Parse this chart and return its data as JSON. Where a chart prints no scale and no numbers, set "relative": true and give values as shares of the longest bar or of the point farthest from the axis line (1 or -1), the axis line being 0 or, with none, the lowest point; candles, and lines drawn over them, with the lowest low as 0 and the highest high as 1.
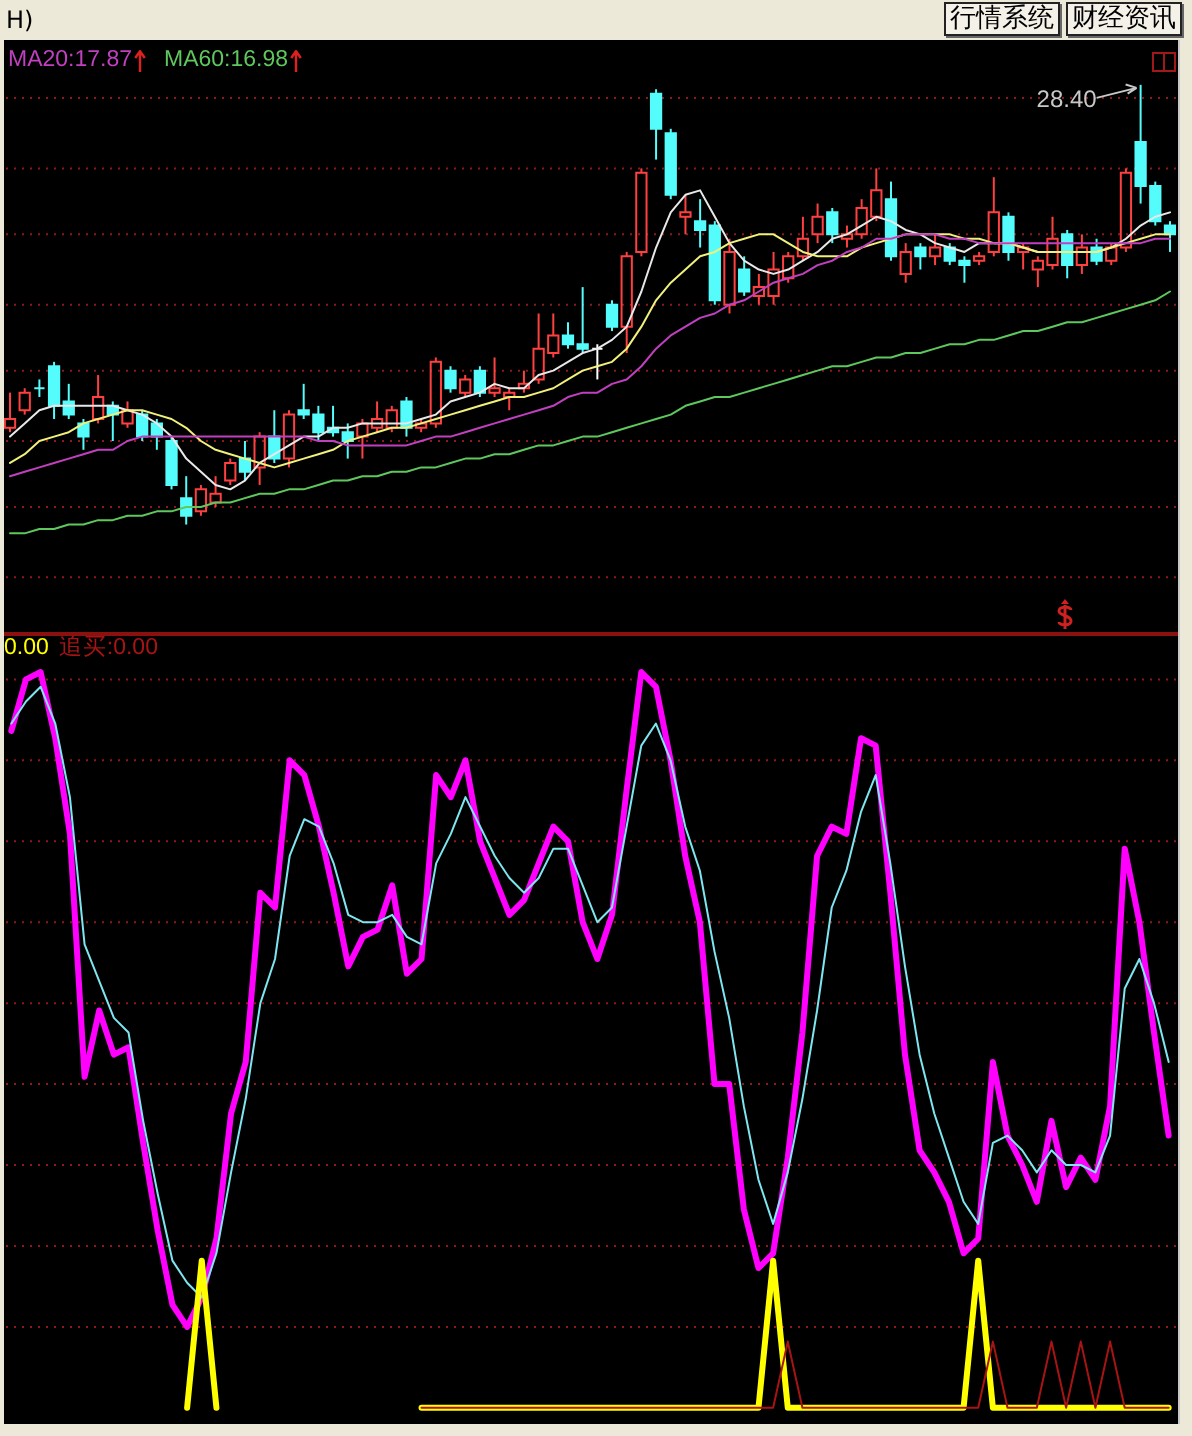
{
  "chart_data": [
    {
      "type": "candlestick",
      "relative": true,
      "legend": "top left",
      "ref_lines": [
        {
          "axis": "y",
          "value": 0.97,
          "color": "#8b1a1a",
          "line_style": "dotted"
        },
        {
          "axis": "y",
          "value": 0.81,
          "color": "#8b1a1a",
          "line_style": "dotted"
        },
        {
          "axis": "y",
          "value": 0.66,
          "color": "#8b1a1a",
          "line_style": "dotted"
        },
        {
          "axis": "y",
          "value": 0.5,
          "color": "#8b1a1a",
          "line_style": "dotted"
        },
        {
          "axis": "y",
          "value": 0.35,
          "color": "#8b1a1a",
          "line_style": "dotted"
        },
        {
          "axis": "y",
          "value": 0.19,
          "color": "#8b1a1a",
          "line_style": "dotted"
        },
        {
          "axis": "y",
          "value": 0.04,
          "color": "#8b1a1a",
          "line_style": "dotted"
        },
        {
          "axis": "y",
          "value": -0.12,
          "color": "#8b1a1a",
          "line_style": "dotted"
        }
      ],
      "categories": [
        null,
        null,
        null,
        null,
        null,
        null,
        null,
        null,
        null,
        null,
        null,
        null,
        null,
        null,
        null,
        null,
        null,
        null,
        null,
        null,
        null,
        null,
        null,
        null,
        null,
        null,
        null,
        null,
        null,
        null,
        null,
        null,
        null,
        null,
        null,
        null,
        null,
        null,
        null,
        null,
        null,
        null,
        null,
        null,
        null,
        null,
        null,
        null,
        null,
        null,
        null,
        null,
        null,
        null,
        null,
        null,
        null,
        null,
        null,
        null,
        null,
        null,
        null,
        null,
        null,
        null,
        null,
        null,
        null,
        null,
        null,
        null,
        null,
        null,
        null,
        null,
        null,
        null,
        null,
        null
      ],
      "ohlc": [
        [
          0.22,
          0.3,
          0.21,
          0.24
        ],
        [
          0.26,
          0.31,
          0.25,
          0.3
        ],
        [
          0.31,
          0.33,
          0.29,
          0.31
        ],
        [
          0.36,
          0.37,
          0.24,
          0.27
        ],
        [
          0.28,
          0.32,
          0.24,
          0.25
        ],
        [
          0.23,
          0.24,
          0.17,
          0.2
        ],
        [
          0.24,
          0.34,
          0.23,
          0.29
        ],
        [
          0.27,
          0.28,
          0.19,
          0.25
        ],
        [
          0.23,
          0.28,
          0.22,
          0.26
        ],
        [
          0.25,
          0.26,
          0.19,
          0.2
        ],
        [
          0.23,
          0.24,
          0.17,
          0.2
        ],
        [
          0.19,
          0.2,
          0.08,
          0.09
        ],
        [
          0.06,
          0.11,
          0,
          0.02
        ],
        [
          0.03,
          0.09,
          0.02,
          0.08
        ],
        [
          0.05,
          0.11,
          0.04,
          0.07
        ],
        [
          0.1,
          0.15,
          0.09,
          0.14
        ],
        [
          0.15,
          0.19,
          0.1,
          0.12
        ],
        [
          0.13,
          0.21,
          0.09,
          0.2
        ],
        [
          0.2,
          0.26,
          0.14,
          0.15
        ],
        [
          0.15,
          0.26,
          0.13,
          0.25
        ],
        [
          0.26,
          0.32,
          0.24,
          0.25
        ],
        [
          0.25,
          0.27,
          0.19,
          0.21
        ],
        [
          0.22,
          0.27,
          0.2,
          0.21
        ],
        [
          0.21,
          0.23,
          0.15,
          0.19
        ],
        [
          0.2,
          0.24,
          0.15,
          0.23
        ],
        [
          0.22,
          0.28,
          0.21,
          0.24
        ],
        [
          0.22,
          0.27,
          0.21,
          0.26
        ],
        [
          0.28,
          0.29,
          0.2,
          0.22
        ],
        [
          0.22,
          0.24,
          0.21,
          0.23
        ],
        [
          0.23,
          0.38,
          0.22,
          0.37
        ],
        [
          0.35,
          0.36,
          0.3,
          0.31
        ],
        [
          0.3,
          0.34,
          0.29,
          0.33
        ],
        [
          0.35,
          0.36,
          0.29,
          0.3
        ],
        [
          0.3,
          0.38,
          0.29,
          0.31
        ],
        [
          0.29,
          0.31,
          0.26,
          0.3
        ],
        [
          0.31,
          0.35,
          0.3,
          0.32
        ],
        [
          0.33,
          0.48,
          0.32,
          0.4
        ],
        [
          0.39,
          0.48,
          0.38,
          0.43
        ],
        [
          0.43,
          0.46,
          0.4,
          0.41
        ],
        [
          0.41,
          0.54,
          0.39,
          0.4
        ],
        [
          0.4,
          0.41,
          0.33,
          0.4
        ],
        [
          0.5,
          0.51,
          0.44,
          0.45
        ],
        [
          0.45,
          0.62,
          0.39,
          0.61
        ],
        [
          0.62,
          0.81,
          0.61,
          0.8
        ],
        [
          0.98,
          0.99,
          0.83,
          0.9
        ],
        [
          0.89,
          0.9,
          0.74,
          0.75
        ],
        [
          0.7,
          0.75,
          0.66,
          0.71
        ],
        [
          0.69,
          0.74,
          0.63,
          0.67
        ],
        [
          0.68,
          0.69,
          0.5,
          0.51
        ],
        [
          0.5,
          0.65,
          0.48,
          0.62
        ],
        [
          0.58,
          0.61,
          0.52,
          0.53
        ],
        [
          0.52,
          0.57,
          0.5,
          0.54
        ],
        [
          0.52,
          0.62,
          0.5,
          0.58
        ],
        [
          0.56,
          0.62,
          0.55,
          0.61
        ],
        [
          0.61,
          0.7,
          0.6,
          0.65
        ],
        [
          0.66,
          0.73,
          0.64,
          0.7
        ],
        [
          0.71,
          0.72,
          0.64,
          0.66
        ],
        [
          0.65,
          0.68,
          0.63,
          0.66
        ],
        [
          0.66,
          0.74,
          0.65,
          0.72
        ],
        [
          0.7,
          0.81,
          0.69,
          0.76
        ],
        [
          0.74,
          0.78,
          0.6,
          0.61
        ],
        [
          0.57,
          0.64,
          0.55,
          0.62
        ],
        [
          0.63,
          0.64,
          0.58,
          0.61
        ],
        [
          0.61,
          0.66,
          0.59,
          0.63
        ],
        [
          0.63,
          0.64,
          0.59,
          0.6
        ],
        [
          0.6,
          0.61,
          0.55,
          0.59
        ],
        [
          0.6,
          0.62,
          0.59,
          0.61
        ],
        [
          0.62,
          0.79,
          0.61,
          0.71
        ],
        [
          0.7,
          0.71,
          0.6,
          0.62
        ],
        [
          0.62,
          0.64,
          0.58,
          0.63
        ],
        [
          0.58,
          0.61,
          0.54,
          0.6
        ],
        [
          0.59,
          0.7,
          0.58,
          0.65
        ],
        [
          0.66,
          0.67,
          0.56,
          0.59
        ],
        [
          0.59,
          0.66,
          0.57,
          0.63
        ],
        [
          0.63,
          0.65,
          0.59,
          0.6
        ],
        [
          0.6,
          0.64,
          0.59,
          0.63
        ],
        [
          0.63,
          0.81,
          0.62,
          0.8
        ],
        [
          0.87,
          1.0,
          0.73,
          0.77
        ],
        [
          0.77,
          0.78,
          0.68,
          0.69
        ],
        [
          0.68,
          0.69,
          0.62,
          0.66
        ]
      ],
      "colors": [
        "#ff4040",
        "#ff4040",
        "#54fcfc",
        "#54fcfc",
        "#54fcfc",
        "#54fcfc",
        "#ff4040",
        "#54fcfc",
        "#ff4040",
        "#54fcfc",
        "#54fcfc",
        "#54fcfc",
        "#54fcfc",
        "#ff4040",
        "#ff4040",
        "#ff4040",
        "#54fcfc",
        "#ff4040",
        "#54fcfc",
        "#ff4040",
        "#54fcfc",
        "#54fcfc",
        "#54fcfc",
        "#54fcfc",
        "#ff4040",
        "#ff4040",
        "#ff4040",
        "#54fcfc",
        "#ff4040",
        "#ff4040",
        "#54fcfc",
        "#ff4040",
        "#54fcfc",
        "#ff4040",
        "#ff4040",
        "#ff4040",
        "#ff4040",
        "#ff4040",
        "#54fcfc",
        "#54fcfc",
        "#ffffff",
        "#54fcfc",
        "#ff4040",
        "#ff4040",
        "#54fcfc",
        "#54fcfc",
        "#ff4040",
        "#54fcfc",
        "#54fcfc",
        "#ff4040",
        "#54fcfc",
        "#ff4040",
        "#ff4040",
        "#ff4040",
        "#ff4040",
        "#ff4040",
        "#54fcfc",
        "#ff4040",
        "#ff4040",
        "#ff4040",
        "#54fcfc",
        "#ff4040",
        "#54fcfc",
        "#ff4040",
        "#54fcfc",
        "#54fcfc",
        "#ff4040",
        "#ff4040",
        "#54fcfc",
        "#ff4040",
        "#ff4040",
        "#ff4040",
        "#54fcfc",
        "#ff4040",
        "#54fcfc",
        "#ff4040",
        "#ff4040",
        "#54fcfc",
        "#54fcfc",
        "#54fcfc"
      ],
      "series": [
        {
          "type": "line",
          "color": "#e8e8e8",
          "values": [
            0.2,
            0.23,
            0.26,
            0.27,
            0.27,
            0.27,
            0.27,
            0.27,
            0.26,
            0.25,
            0.23,
            0.2,
            0.15,
            0.12,
            0.09,
            0.08,
            0.1,
            0.14,
            0.16,
            0.18,
            0.2,
            0.2,
            0.22,
            0.22,
            0.23,
            0.23,
            0.23,
            0.23,
            0.24,
            0.25,
            0.28,
            0.29,
            0.3,
            0.32,
            0.31,
            0.31,
            0.34,
            0.35,
            0.37,
            0.39,
            0.4,
            0.42,
            0.45,
            0.53,
            0.63,
            0.71,
            0.75,
            0.76,
            0.7,
            0.64,
            0.6,
            0.58,
            0.57,
            0.58,
            0.6,
            0.62,
            0.65,
            0.66,
            0.68,
            0.7,
            0.69,
            0.67,
            0.66,
            0.64,
            0.63,
            0.62,
            0.64,
            0.64,
            0.64,
            0.63,
            0.62,
            0.62,
            0.62,
            0.62,
            0.62,
            0.63,
            0.65,
            0.68,
            0.7,
            0.71
          ]
        },
        {
          "type": "line",
          "color": "#f0f07a",
          "values": [
            0.14,
            0.16,
            0.19,
            0.2,
            0.21,
            0.23,
            0.24,
            0.25,
            0.26,
            0.26,
            0.25,
            0.24,
            0.22,
            0.19,
            0.17,
            0.16,
            0.15,
            0.14,
            0.13,
            0.14,
            0.15,
            0.16,
            0.17,
            0.19,
            0.2,
            0.21,
            0.22,
            0.22,
            0.23,
            0.24,
            0.25,
            0.26,
            0.27,
            0.28,
            0.29,
            0.29,
            0.3,
            0.31,
            0.33,
            0.35,
            0.36,
            0.37,
            0.4,
            0.45,
            0.51,
            0.55,
            0.58,
            0.61,
            0.62,
            0.64,
            0.65,
            0.66,
            0.66,
            0.64,
            0.62,
            0.61,
            0.61,
            0.61,
            0.63,
            0.64,
            0.65,
            0.66,
            0.66,
            0.66,
            0.66,
            0.65,
            0.65,
            0.64,
            0.64,
            0.63,
            0.62,
            0.62,
            0.62,
            0.62,
            0.62,
            0.63,
            0.64,
            0.65,
            0.66,
            0.66
          ]
        },
        {
          "type": "line",
          "name": "MA20:17.87",
          "color": "#c040c0",
          "values": [
            0.11,
            0.12,
            0.13,
            0.14,
            0.15,
            0.16,
            0.17,
            0.17,
            0.19,
            0.2,
            0.2,
            0.2,
            0.2,
            0.2,
            0.2,
            0.2,
            0.2,
            0.2,
            0.2,
            0.2,
            0.2,
            0.19,
            0.19,
            0.18,
            0.18,
            0.18,
            0.18,
            0.18,
            0.19,
            0.2,
            0.2,
            0.21,
            0.22,
            0.23,
            0.24,
            0.25,
            0.26,
            0.27,
            0.29,
            0.3,
            0.3,
            0.32,
            0.33,
            0.36,
            0.4,
            0.43,
            0.45,
            0.47,
            0.48,
            0.5,
            0.51,
            0.53,
            0.55,
            0.56,
            0.57,
            0.59,
            0.6,
            0.62,
            0.63,
            0.65,
            0.65,
            0.66,
            0.66,
            0.66,
            0.65,
            0.65,
            0.64,
            0.64,
            0.64,
            0.64,
            0.64,
            0.64,
            0.64,
            0.64,
            0.64,
            0.64,
            0.64,
            0.64,
            0.65,
            0.65
          ]
        },
        {
          "type": "line",
          "name": "MA60:16.98",
          "color": "#5ec85e",
          "values": [
            -0.02,
            -0.02,
            -0.01,
            -0.01,
            0.0,
            0.0,
            0.01,
            0.01,
            0.02,
            0.02,
            0.03,
            0.03,
            0.04,
            0.04,
            0.05,
            0.05,
            0.06,
            0.07,
            0.07,
            0.08,
            0.08,
            0.09,
            0.1,
            0.1,
            0.11,
            0.11,
            0.12,
            0.12,
            0.13,
            0.13,
            0.14,
            0.15,
            0.15,
            0.16,
            0.16,
            0.17,
            0.18,
            0.18,
            0.19,
            0.2,
            0.2,
            0.21,
            0.22,
            0.23,
            0.24,
            0.25,
            0.27,
            0.28,
            0.29,
            0.29,
            0.3,
            0.31,
            0.32,
            0.33,
            0.34,
            0.35,
            0.36,
            0.36,
            0.37,
            0.38,
            0.38,
            0.39,
            0.39,
            0.4,
            0.41,
            0.41,
            0.42,
            0.42,
            0.43,
            0.44,
            0.44,
            0.45,
            0.46,
            0.46,
            0.47,
            0.48,
            0.49,
            0.5,
            0.51,
            0.53
          ]
        }
      ],
      "annotations": [
        "28.40",
        "H)",
        "行情系统",
        "财经资讯"
      ]
    },
    {
      "type": "line",
      "relative": true,
      "legend": "top left",
      "ref_lines": [
        {
          "axis": "y",
          "value": 0.99,
          "color": "#8b1a1a",
          "line_style": "dotted"
        },
        {
          "axis": "y",
          "value": 0.88,
          "color": "#8b1a1a",
          "line_style": "dotted"
        },
        {
          "axis": "y",
          "value": 0.77,
          "color": "#8b1a1a",
          "line_style": "dotted"
        },
        {
          "axis": "y",
          "value": 0.66,
          "color": "#8b1a1a",
          "line_style": "dotted"
        },
        {
          "axis": "y",
          "value": 0.55,
          "color": "#8b1a1a",
          "line_style": "dotted"
        },
        {
          "axis": "y",
          "value": 0.44,
          "color": "#8b1a1a",
          "line_style": "dotted"
        },
        {
          "axis": "y",
          "value": 0.33,
          "color": "#8b1a1a",
          "line_style": "dotted"
        },
        {
          "axis": "y",
          "value": 0.22,
          "color": "#8b1a1a",
          "line_style": "dotted"
        },
        {
          "axis": "y",
          "value": 0.11,
          "color": "#8b1a1a",
          "line_style": "dotted"
        }
      ],
      "categories": [
        null,
        null,
        null,
        null,
        null,
        null,
        null,
        null,
        null,
        null,
        null,
        null,
        null,
        null,
        null,
        null,
        null,
        null,
        null,
        null,
        null,
        null,
        null,
        null,
        null,
        null,
        null,
        null,
        null,
        null,
        null,
        null,
        null,
        null,
        null,
        null,
        null,
        null,
        null,
        null,
        null,
        null,
        null,
        null,
        null,
        null,
        null,
        null,
        null,
        null,
        null,
        null,
        null,
        null,
        null,
        null,
        null,
        null,
        null,
        null,
        null,
        null,
        null,
        null,
        null,
        null,
        null,
        null,
        null,
        null,
        null,
        null,
        null,
        null,
        null,
        null,
        null,
        null,
        null,
        null
      ],
      "series": [
        {
          "color": "#ff00ff",
          "values": [
            0.92,
            0.99,
            1.0,
            0.91,
            0.78,
            0.45,
            0.54,
            0.48,
            0.49,
            0.36,
            0.24,
            0.14,
            0.11,
            0.15,
            0.23,
            0.4,
            0.47,
            0.7,
            0.68,
            0.88,
            0.86,
            0.79,
            0.7,
            0.6,
            0.64,
            0.65,
            0.71,
            0.59,
            0.61,
            0.86,
            0.83,
            0.88,
            0.77,
            0.72,
            0.67,
            0.69,
            0.74,
            0.79,
            0.77,
            0.66,
            0.61,
            0.67,
            0.84,
            1.0,
            0.98,
            0.88,
            0.75,
            0.66,
            0.44,
            0.44,
            0.27,
            0.19,
            0.21,
            0.34,
            0.51,
            0.75,
            0.79,
            0.78,
            0.91,
            0.9,
            0.7,
            0.48,
            0.35,
            0.32,
            0.28,
            0.21,
            0.23,
            0.47,
            0.37,
            0.33,
            0.28,
            0.39,
            0.3,
            0.34,
            0.31,
            0.41,
            0.76,
            0.66,
            0.51,
            0.37
          ]
        },
        {
          "color": "#7ee6f0",
          "values": [
            0.93,
            0.96,
            0.98,
            0.93,
            0.83,
            0.63,
            0.58,
            0.53,
            0.51,
            0.39,
            0.29,
            0.2,
            0.17,
            0.15,
            0.21,
            0.32,
            0.42,
            0.55,
            0.61,
            0.75,
            0.8,
            0.79,
            0.74,
            0.67,
            0.66,
            0.66,
            0.67,
            0.64,
            0.63,
            0.74,
            0.78,
            0.83,
            0.79,
            0.75,
            0.72,
            0.7,
            0.72,
            0.76,
            0.76,
            0.71,
            0.66,
            0.68,
            0.79,
            0.9,
            0.93,
            0.88,
            0.79,
            0.73,
            0.62,
            0.53,
            0.41,
            0.31,
            0.25,
            0.32,
            0.42,
            0.54,
            0.68,
            0.73,
            0.81,
            0.86,
            0.74,
            0.6,
            0.48,
            0.4,
            0.34,
            0.28,
            0.25,
            0.36,
            0.37,
            0.35,
            0.32,
            0.35,
            0.33,
            0.33,
            0.32,
            0.37,
            0.57,
            0.61,
            0.55,
            0.47
          ]
        },
        {
          "name": "0.00",
          "color": "#ffff00",
          "values": [
            null,
            null,
            null,
            null,
            null,
            null,
            null,
            null,
            null,
            null,
            null,
            null,
            0,
            0.2,
            0,
            null,
            null,
            null,
            null,
            null,
            null,
            null,
            null,
            null,
            null,
            null,
            null,
            null,
            0,
            0,
            0,
            0,
            0,
            0,
            0,
            0,
            0,
            0,
            0,
            0,
            0,
            0,
            0,
            0,
            0,
            0,
            0,
            0,
            0,
            0,
            0,
            0,
            0.2,
            0,
            0,
            0,
            0,
            0,
            0,
            0,
            0,
            0,
            0,
            0,
            0,
            0,
            0.2,
            0,
            0,
            0,
            0,
            0,
            0,
            0,
            0,
            0,
            0,
            0,
            0,
            0
          ]
        },
        {
          "name": "追买:0.00",
          "color": "#a81414",
          "values": [
            null,
            null,
            null,
            null,
            null,
            null,
            null,
            null,
            null,
            null,
            null,
            null,
            null,
            null,
            null,
            null,
            null,
            null,
            null,
            null,
            null,
            null,
            null,
            null,
            null,
            null,
            null,
            null,
            0,
            0,
            0,
            0,
            0,
            0,
            0,
            0,
            0,
            0,
            0,
            0,
            0,
            0,
            0,
            0,
            0,
            0,
            0,
            0,
            0,
            0,
            0,
            0,
            0,
            0.09,
            0,
            0,
            0,
            0,
            0,
            0,
            0,
            0,
            0,
            0,
            0,
            0,
            0,
            0.09,
            0,
            0,
            0,
            0.09,
            0,
            0.09,
            0,
            0.09,
            0,
            0,
            0,
            0
          ]
        }
      ]
    }
  ]
}
